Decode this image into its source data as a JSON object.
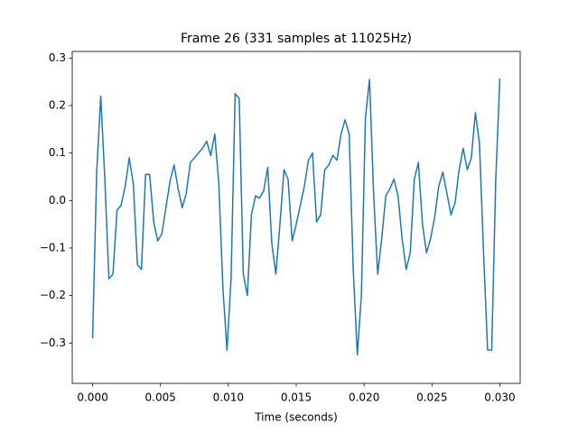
{
  "chart_data": {
    "type": "line",
    "title": "Frame 26 (331 samples at 11025Hz)",
    "x_label": "Time (seconds)",
    "x": [
      0,
      0.0003,
      0.0006,
      0.0009,
      0.0012,
      0.0015,
      0.0018,
      0.0021,
      0.0024,
      0.0027,
      0.003,
      0.0033,
      0.0036,
      0.0039,
      0.0042,
      0.0045,
      0.0048,
      0.0051,
      0.0054,
      0.0057,
      0.006,
      0.0063,
      0.0066,
      0.0069,
      0.0072,
      0.0075,
      0.0078,
      0.0081,
      0.0084,
      0.0087,
      0.009,
      0.0093,
      0.0096,
      0.0099,
      0.0102,
      0.0105,
      0.0108,
      0.0111,
      0.0114,
      0.0117,
      0.012,
      0.0123,
      0.0126,
      0.0129,
      0.0132,
      0.0135,
      0.0138,
      0.0141,
      0.0144,
      0.0147,
      0.015,
      0.0153,
      0.0156,
      0.0159,
      0.0162,
      0.0165,
      0.0168,
      0.0171,
      0.0174,
      0.0177,
      0.018,
      0.0183,
      0.0186,
      0.0189,
      0.0192,
      0.0195,
      0.0198,
      0.0201,
      0.0204,
      0.0207,
      0.021,
      0.0213,
      0.0216,
      0.0219,
      0.0222,
      0.0225,
      0.0228,
      0.0231,
      0.0234,
      0.0237,
      0.024,
      0.0243,
      0.0246,
      0.0249,
      0.0252,
      0.0255,
      0.0258,
      0.0261,
      0.0264,
      0.0267,
      0.027,
      0.0273,
      0.0276,
      0.0279,
      0.0282,
      0.0285,
      0.0288,
      0.0291,
      0.0294,
      0.0297,
      0.03
    ],
    "series": [
      {
        "color": "#1f77b4",
        "values": [
          -0.29,
          0.06,
          0.22,
          0.045,
          -0.165,
          -0.155,
          -0.02,
          -0.01,
          0.03,
          0.09,
          0.035,
          -0.135,
          -0.145,
          0.055,
          0.055,
          -0.045,
          -0.085,
          -0.07,
          -0.015,
          0.04,
          0.075,
          0.025,
          -0.015,
          0.015,
          0.08,
          0.09,
          0.1,
          0.11,
          0.125,
          0.095,
          0.14,
          0.035,
          -0.185,
          -0.315,
          -0.165,
          0.225,
          0.215,
          -0.155,
          -0.2,
          -0.03,
          0.01,
          0.005,
          0.02,
          0.07,
          -0.09,
          -0.155,
          -0.05,
          0.065,
          0.045,
          -0.085,
          -0.05,
          -0.01,
          0.03,
          0.085,
          0.1,
          -0.045,
          -0.03,
          0.065,
          0.075,
          0.095,
          0.085,
          0.14,
          0.17,
          0.14,
          -0.145,
          -0.325,
          -0.2,
          0.175,
          0.255,
          0.015,
          -0.155,
          -0.08,
          0.01,
          0.025,
          0.045,
          0.01,
          -0.08,
          -0.145,
          -0.11,
          0.045,
          0.08,
          -0.05,
          -0.11,
          -0.08,
          -0.035,
          0.03,
          0.06,
          0.015,
          -0.03,
          -0.005,
          0.065,
          0.11,
          0.065,
          0.09,
          0.185,
          0.12,
          -0.11,
          -0.315,
          -0.315,
          0.045,
          0.257
        ]
      }
    ],
    "xlim": [
      -0.0015,
      0.0315
    ],
    "ylim": [
      -0.385,
      0.314
    ],
    "xticks": [
      {
        "value": 0,
        "label": "0.000"
      },
      {
        "value": 0.005,
        "label": "0.005"
      },
      {
        "value": 0.01,
        "label": "0.010"
      },
      {
        "value": 0.015,
        "label": "0.015"
      },
      {
        "value": 0.02,
        "label": "0.020"
      },
      {
        "value": 0.025,
        "label": "0.025"
      },
      {
        "value": 0.03,
        "label": "0.030"
      }
    ],
    "yticks": [
      {
        "value": -0.3,
        "label": "−0.3"
      },
      {
        "value": -0.2,
        "label": "−0.2"
      },
      {
        "value": -0.1,
        "label": "−0.1"
      },
      {
        "value": 0,
        "label": "0.0"
      },
      0.1,
      0.2,
      0.3
    ],
    "grid": false
  }
}
